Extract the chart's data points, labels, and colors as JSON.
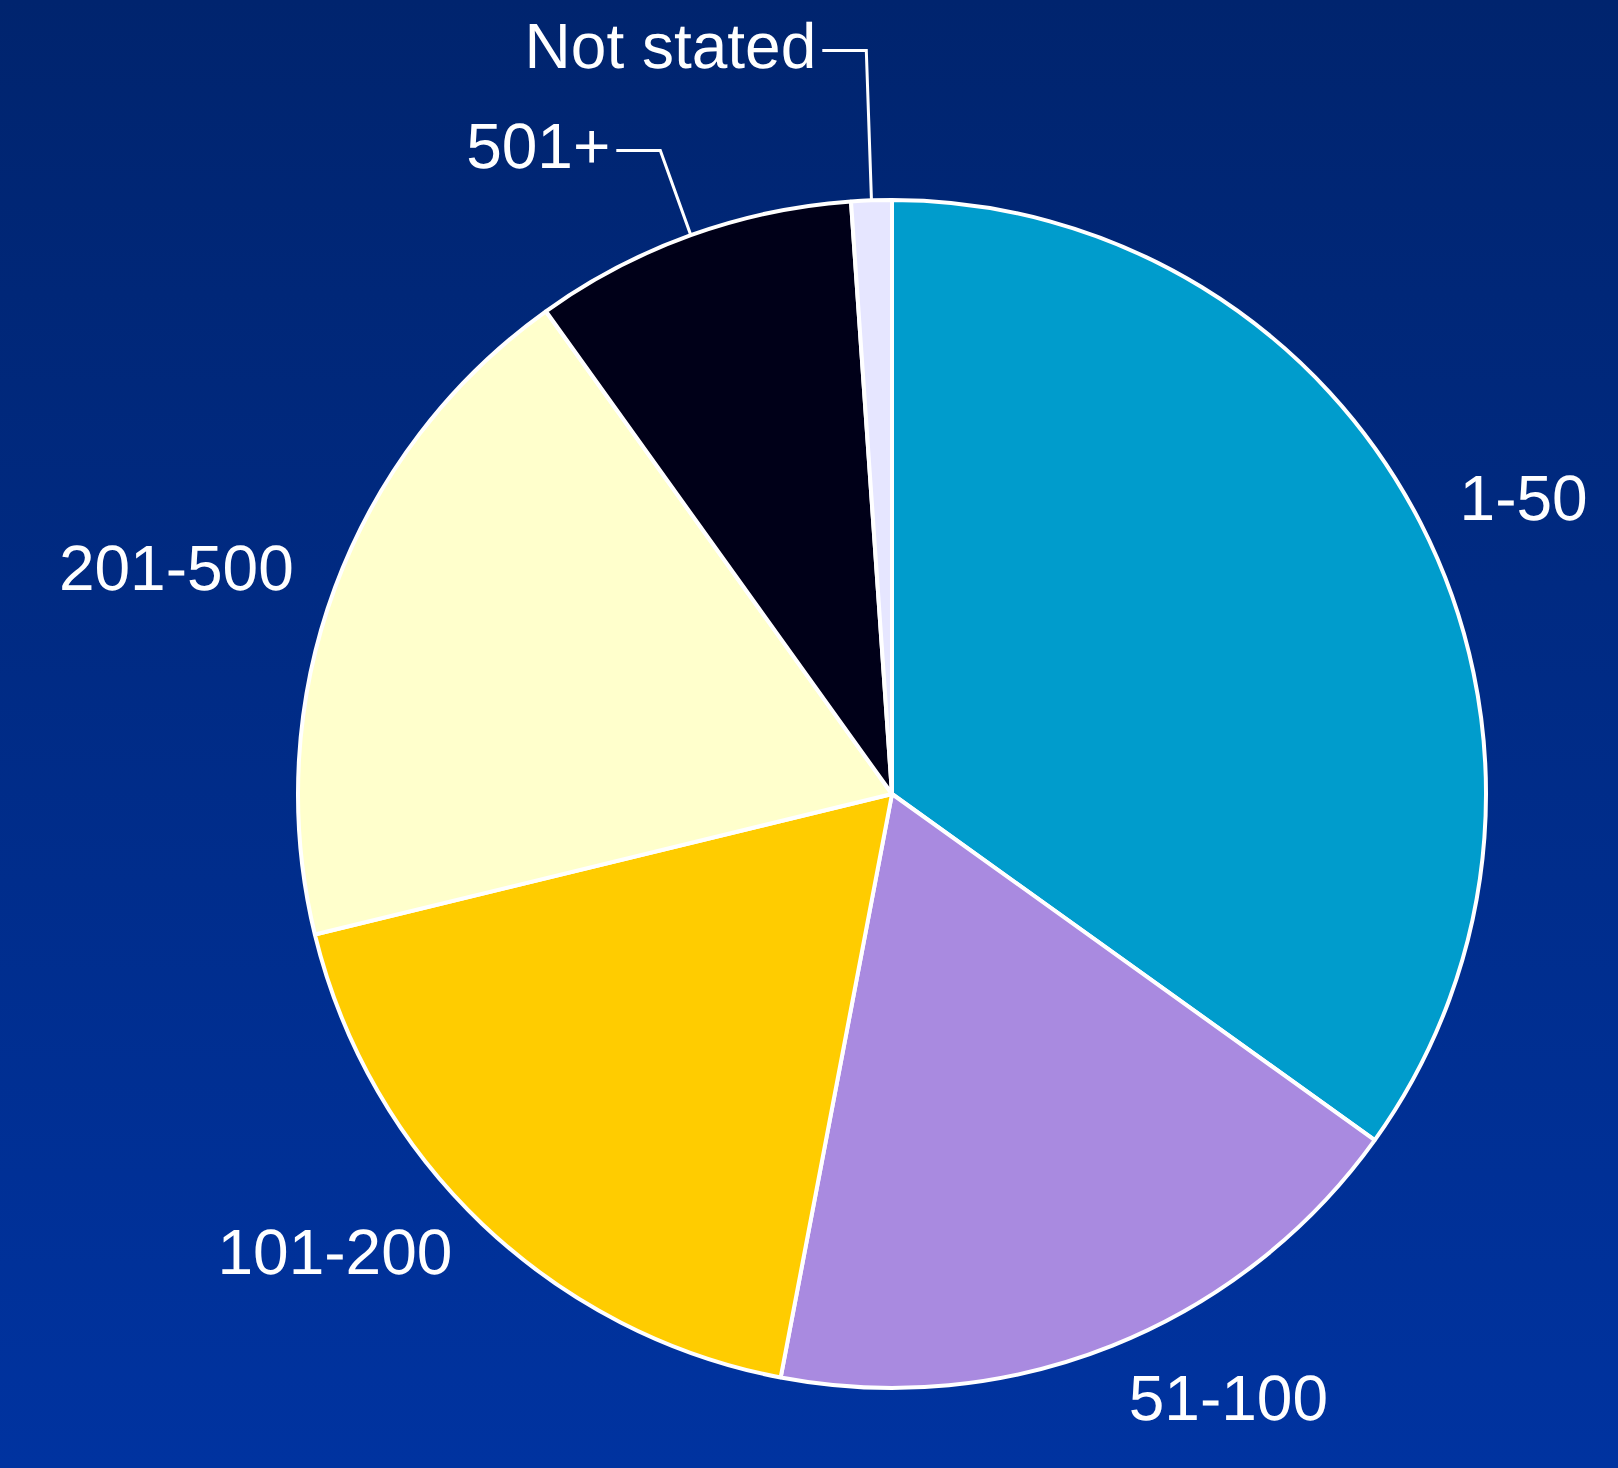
{
  "chart_data": {
    "type": "pie",
    "categories": [
      "1-50",
      "51-100",
      "101-200",
      "201-500",
      "501+",
      "Not stated"
    ],
    "values": [
      34.9,
      18.1,
      18.2,
      18.9,
      8.8,
      1.1
    ],
    "colors": [
      "#009ccc",
      "#a98ae0",
      "#ffcc00",
      "#ffffcc",
      "#000018",
      "#e6e6ff"
    ],
    "legend": false
  }
}
